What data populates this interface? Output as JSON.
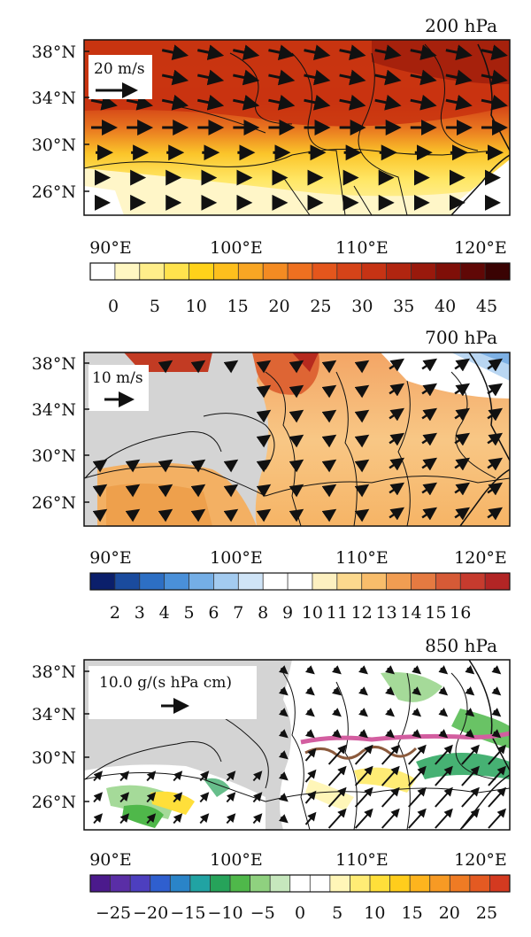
{
  "panels": [
    {
      "id": "p200",
      "level": "200 hPa",
      "lat_labels": [
        "38°N",
        "34°N",
        "30°N",
        "26°N"
      ],
      "lon_labels": [
        "90°E",
        "100°E",
        "110°E",
        "120°E"
      ],
      "vector_legend": "20 m/s",
      "colorbar_ticks": [
        "0",
        "5",
        "10",
        "15",
        "20",
        "25",
        "30",
        "35",
        "40",
        "45"
      ],
      "colorbar_colors": [
        "#ffffff",
        "#fff7c2",
        "#ffee8a",
        "#ffe34d",
        "#ffd21a",
        "#fdbf1d",
        "#f9a623",
        "#f48b22",
        "#ee7020",
        "#e4561c",
        "#d64318",
        "#c63314",
        "#b12510",
        "#99190c",
        "#7f0f08",
        "#600806",
        "#3a0303"
      ]
    },
    {
      "id": "p700",
      "level": "700 hPa",
      "lat_labels": [
        "38°N",
        "34°N",
        "30°N",
        "26°N"
      ],
      "lon_labels": [
        "90°E",
        "100°E",
        "110°E",
        "120°E"
      ],
      "vector_legend": "10 m/s",
      "colorbar_ticks": [
        "2",
        "3",
        "4",
        "5",
        "6",
        "7",
        "8",
        "9",
        "10",
        "11",
        "12",
        "13",
        "14",
        "15",
        "16"
      ],
      "colorbar_colors": [
        "#0b1f6b",
        "#1a4b9e",
        "#2d6fc4",
        "#4a90d9",
        "#74aee6",
        "#a3cbf0",
        "#cfe4f7",
        "#ffffff",
        "#ffffff",
        "#fdf0c0",
        "#fcd98e",
        "#f8bd6b",
        "#f19d52",
        "#e57a41",
        "#d65a36",
        "#c63b2e",
        "#b22525"
      ]
    },
    {
      "id": "p850",
      "level": "850 hPa",
      "lat_labels": [
        "38°N",
        "34°N",
        "30°N",
        "26°N"
      ],
      "lon_labels": [
        "90°E",
        "100°E",
        "110°E",
        "120°E"
      ],
      "vector_legend": "10.0 g/(s hPa cm)",
      "colorbar_ticks": [
        "−25",
        "−20",
        "−15",
        "−10",
        "−5",
        "0",
        "5",
        "10",
        "15",
        "20",
        "25"
      ],
      "colorbar_colors": [
        "#4b1a8c",
        "#5a2ea6",
        "#4d3fbf",
        "#2f5fcf",
        "#2a84c8",
        "#21a3a3",
        "#26a35a",
        "#4fb84a",
        "#8fd17f",
        "#c6e7bd",
        "#ffffff",
        "#ffffff",
        "#fff6b8",
        "#ffec75",
        "#ffdf3a",
        "#ffcd1c",
        "#fdb41e",
        "#f79a24",
        "#ef7b24",
        "#e45a22",
        "#d43a20"
      ]
    }
  ],
  "colors": {
    "land_gray": "#d4d4d4",
    "boundary": "#111111",
    "trough_line": "#d35ea0",
    "front_line": "#8b5a3c"
  }
}
